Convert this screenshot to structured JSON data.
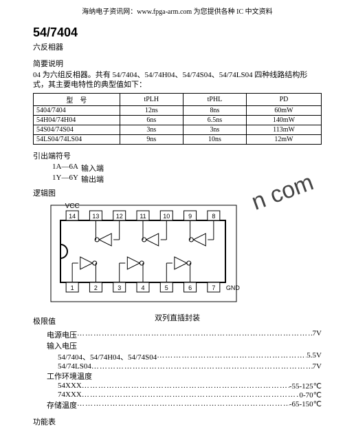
{
  "site_header": "海纳电子资讯网：www.fpga-arm.com 为您提供各种 IC 中文资料",
  "part_number": "54/7404",
  "subtitle": "六反相器",
  "brief_heading": "简要说明",
  "brief_text": "04 为六组反相器。共有 54/7404、54/74H04、54/74S04、54/74LS04 四种线路结构形式，其主要电特性的典型值如下：",
  "spec_table": {
    "headers": [
      "型　号",
      "tPLH",
      "tPHL",
      "PD"
    ],
    "rows": [
      [
        "5404/7404",
        "12ns",
        "8ns",
        "60mW"
      ],
      [
        "54H04/74H04",
        "6ns",
        "6.5ns",
        "140mW"
      ],
      [
        "54S04/74S04",
        "3ns",
        "3ns",
        "113mW"
      ],
      [
        "54LS04/74LS04",
        "9ns",
        "10ns",
        "12mW"
      ]
    ],
    "col_widths": [
      "30%",
      "22%",
      "22%",
      "26%"
    ]
  },
  "pins_heading": "引出端符号",
  "pins": [
    {
      "sym": "1A—6A",
      "desc": "输入端"
    },
    {
      "sym": "1Y—6Y",
      "desc": "输出端"
    }
  ],
  "logic_heading": "逻辑图",
  "watermark_text": "n com",
  "diagram": {
    "vcc_label": "VCC",
    "gnd_label": "GND",
    "top_pins": [
      "14",
      "13",
      "12",
      "11",
      "10",
      "9",
      "8"
    ],
    "bot_pins": [
      "1",
      "2",
      "3",
      "4",
      "5",
      "6",
      "7"
    ],
    "caption": "双列直插封装",
    "stroke": "#000000"
  },
  "max_heading": "极限值",
  "max_ratings": [
    {
      "label": "电源电压",
      "value": "7V",
      "indent": 1
    },
    {
      "label": "输入电压",
      "value": "",
      "indent": 1
    },
    {
      "label": "54/7404、54/74H04、54/74S04",
      "value": "5.5V",
      "indent": 2
    },
    {
      "label": "54/74LS04",
      "value": "7V",
      "indent": 2
    },
    {
      "label": "工作环境温度",
      "value": "",
      "indent": 1
    },
    {
      "label": "54XXX",
      "value": "-55-125℃",
      "indent": 2
    },
    {
      "label": "74XXX",
      "value": "0-70℃",
      "indent": 2
    },
    {
      "label": "存储温度",
      "value": "-65-150℃",
      "indent": 1
    }
  ],
  "func_heading": "功能表"
}
